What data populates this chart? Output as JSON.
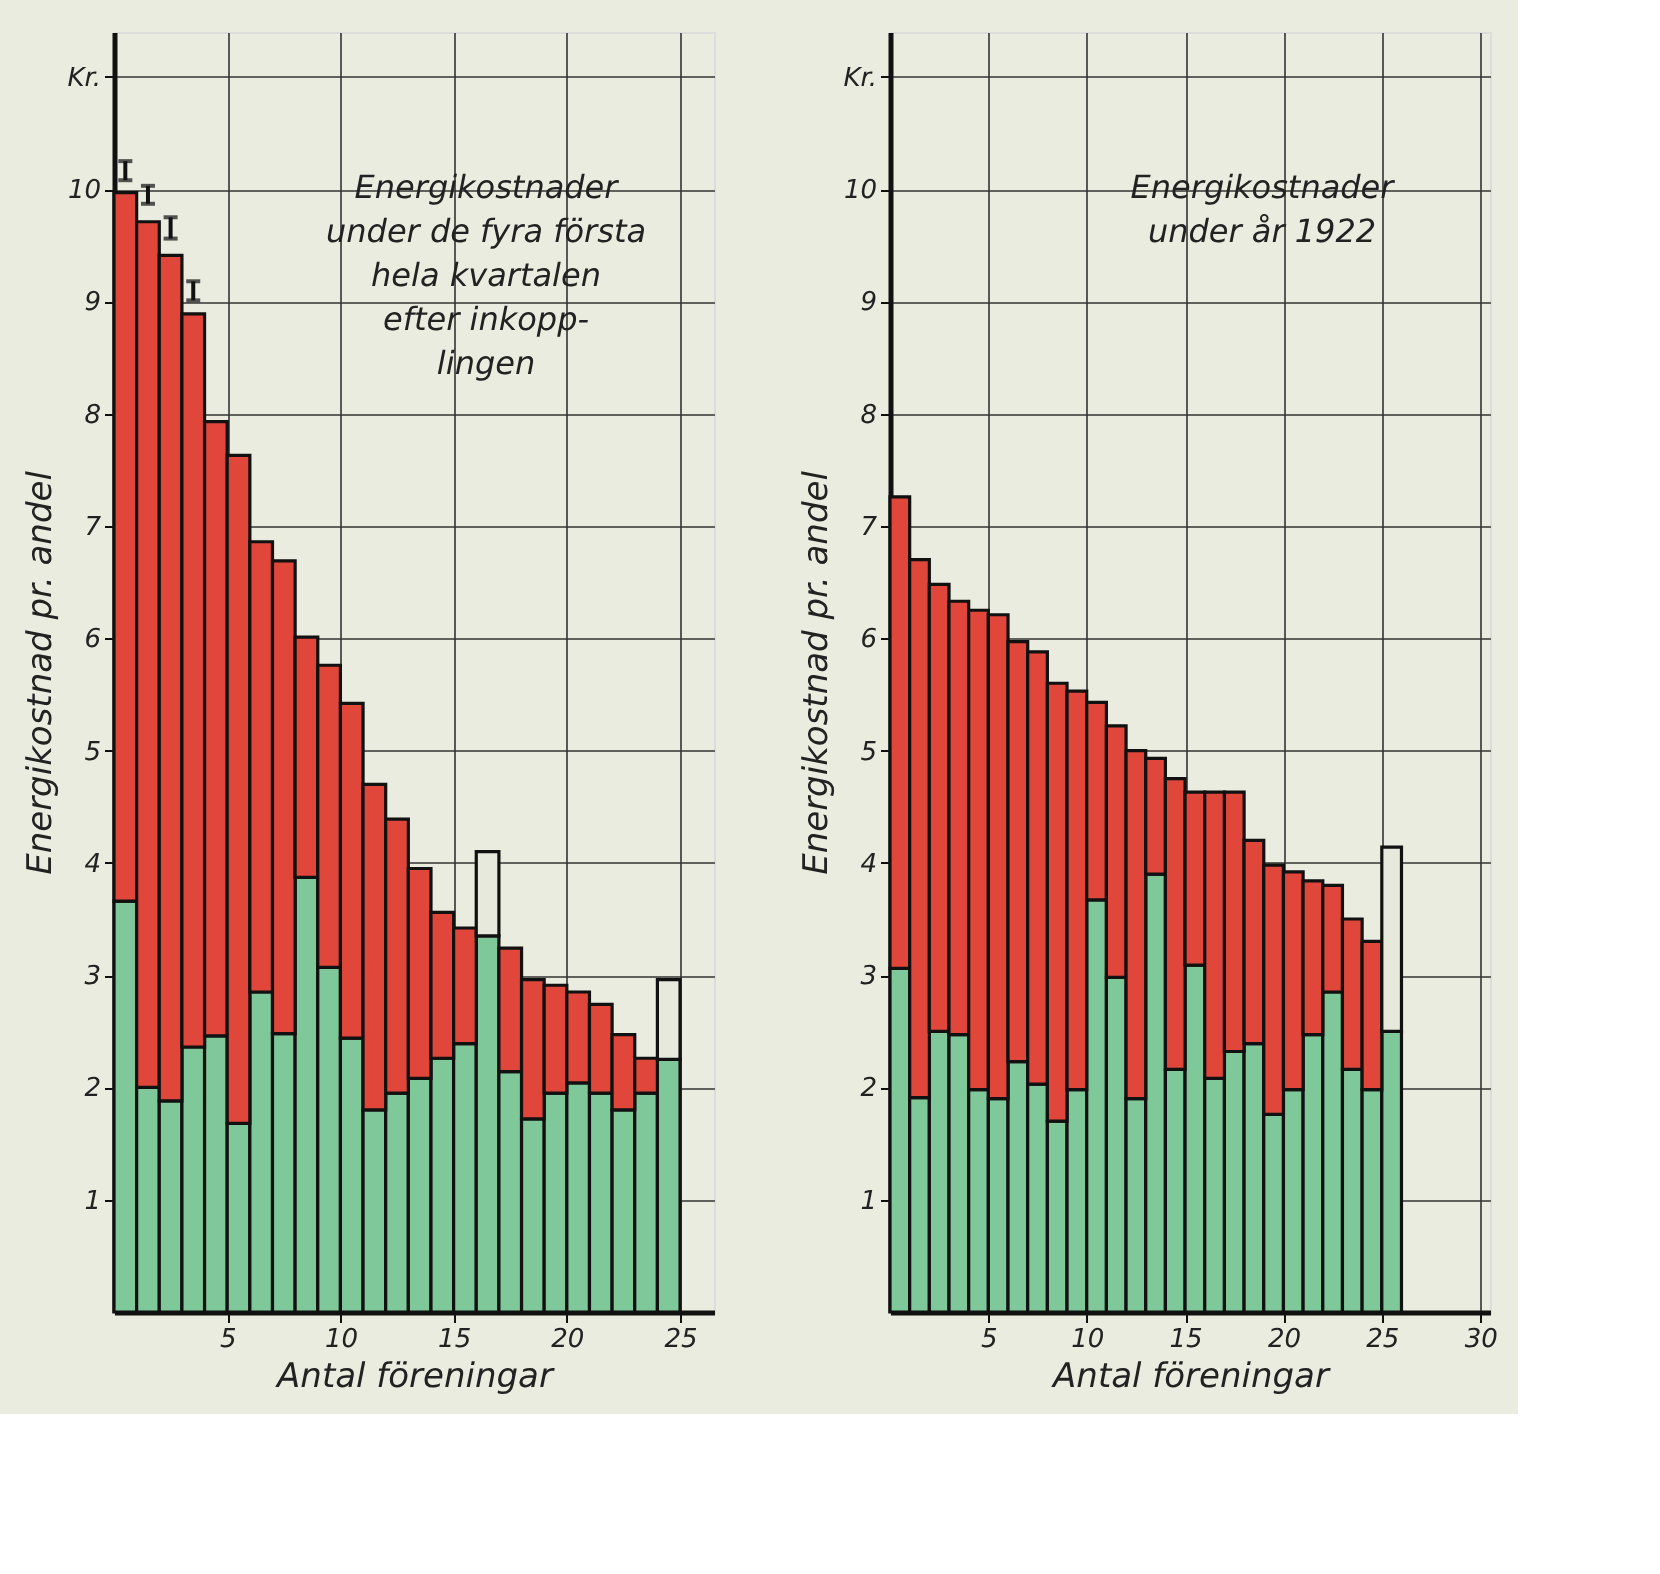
{
  "chart_data": [
    {
      "type": "bar",
      "stacked": true,
      "xlabel": "Antal föreningar",
      "ylabel": "Energikostnad pr. andel",
      "x": [
        0.5,
        1.5,
        2.5,
        3.5,
        4.5,
        5.5,
        6.5,
        7.5,
        8.5,
        9.5,
        10.5,
        11.5,
        12.5,
        13.5,
        14.5,
        15.5,
        16.5,
        17.5,
        18.5,
        19.5,
        20.5,
        21.5,
        22.5,
        23.5,
        24.5
      ],
      "series": [
        {
          "color": "#7fc89a",
          "values": [
            3.66,
            2.0,
            1.88,
            2.36,
            2.46,
            1.68,
            2.85,
            2.48,
            3.87,
            3.07,
            2.44,
            1.8,
            1.95,
            2.08,
            2.26,
            2.39,
            3.35,
            2.14,
            1.72,
            1.95,
            2.04,
            1.95,
            1.8,
            1.95,
            2.25
          ]
        },
        {
          "color": "#e0473a",
          "errors": [
            [
              10.08,
              10.25
            ],
            [
              9.87,
              10.03
            ],
            [
              9.56,
              9.75
            ],
            [
              9.01,
              9.18
            ],
            null,
            null,
            null,
            null,
            null,
            null,
            null,
            null,
            null,
            null,
            null,
            null,
            null,
            null,
            null,
            null,
            null,
            null,
            null,
            null,
            null
          ],
          "values": [
            6.31,
            7.71,
            7.53,
            6.53,
            5.47,
            5.95,
            4.01,
            4.21,
            2.14,
            2.69,
            2.98,
            2.9,
            2.44,
            1.87,
            1.3,
            1.03,
            null,
            1.1,
            1.24,
            0.96,
            0.81,
            0.79,
            0.67,
            0.31,
            null
          ]
        },
        {
          "color": "#e6e9dc",
          "values": [
            null,
            null,
            null,
            null,
            null,
            null,
            null,
            null,
            null,
            null,
            null,
            null,
            null,
            null,
            null,
            null,
            0.75,
            null,
            null,
            null,
            null,
            null,
            null,
            null,
            0.71
          ]
        }
      ],
      "xlim": [
        0,
        26.5
      ],
      "xticks": [
        5,
        10,
        15,
        20,
        25
      ],
      "ylim": [
        0,
        11.4
      ],
      "yticks": [
        1,
        2,
        3,
        4,
        5,
        6,
        7,
        8,
        9,
        10,
        {
          "value": 11,
          "label": "Kr."
        }
      ],
      "grid": true,
      "annotations": [
        "Energikostnader\nunder de fyra första\nhela kvartalen\nefter inkopp-\nlingen"
      ]
    },
    {
      "type": "bar",
      "stacked": true,
      "xlabel": "Antal föreningar",
      "ylabel": "Energikostnad pr. andel",
      "x": [
        0.5,
        1.5,
        2.5,
        3.5,
        4.5,
        5.5,
        6.5,
        7.5,
        8.5,
        9.5,
        10.5,
        11.5,
        12.5,
        13.5,
        14.5,
        15.5,
        16.5,
        17.5,
        18.5,
        19.5,
        20.5,
        21.5,
        22.5,
        23.5,
        24.5,
        25.5
      ],
      "series": [
        {
          "color": "#7fc89a",
          "values": [
            3.06,
            1.91,
            2.5,
            2.47,
            1.98,
            1.9,
            2.23,
            2.03,
            1.7,
            1.98,
            3.67,
            2.98,
            1.9,
            3.9,
            2.16,
            3.09,
            2.08,
            2.32,
            2.39,
            1.76,
            1.98,
            2.47,
            2.85,
            2.16,
            1.98,
            2.5
          ]
        },
        {
          "color": "#e0473a",
          "values": [
            4.2,
            4.79,
            3.98,
            3.86,
            4.27,
            4.31,
            3.74,
            3.85,
            3.9,
            3.55,
            1.76,
            2.24,
            3.1,
            1.03,
            2.59,
            1.54,
            2.55,
            2.31,
            1.81,
            2.22,
            1.94,
            1.37,
            0.95,
            1.34,
            1.32,
            null
          ]
        },
        {
          "color": "#e6e9dc",
          "values": [
            null,
            null,
            null,
            null,
            null,
            null,
            null,
            null,
            null,
            null,
            null,
            null,
            null,
            null,
            null,
            null,
            null,
            null,
            null,
            null,
            null,
            null,
            null,
            null,
            null,
            1.64
          ]
        }
      ],
      "xlim": [
        0,
        30.5
      ],
      "xticks": [
        5,
        10,
        15,
        20,
        25,
        30
      ],
      "ylim": [
        0,
        11.4
      ],
      "yticks": [
        1,
        2,
        3,
        4,
        5,
        6,
        7,
        8,
        9,
        10,
        {
          "value": 11,
          "label": "Kr."
        }
      ],
      "grid": true,
      "annotations": [
        "Energikostnader\nunder år 1922"
      ]
    }
  ]
}
